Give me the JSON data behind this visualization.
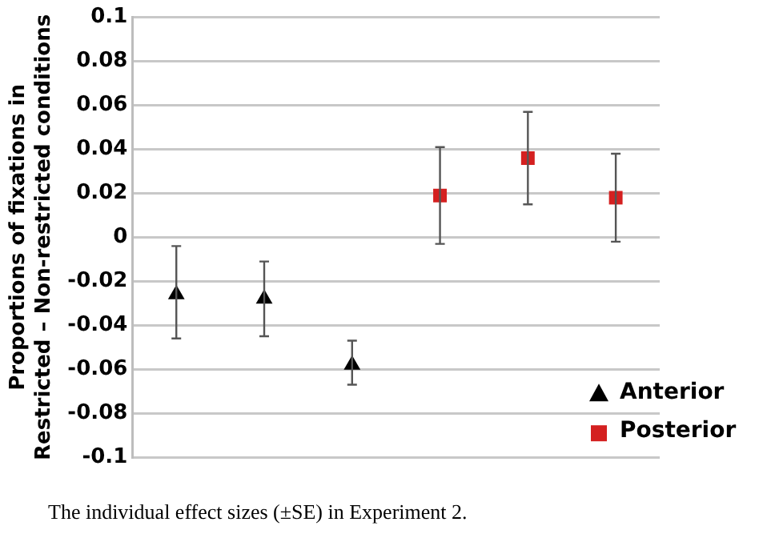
{
  "chart_data": {
    "type": "scatter",
    "ylabel": "Proportions of fixations in\nRestricted – Non-restricted conditions",
    "categories": [
      null,
      null,
      null,
      null,
      null,
      null
    ],
    "series": [
      {
        "name": "Anterior",
        "color": "#000000",
        "marker": "triangle",
        "values": [
          -0.026,
          -0.028,
          -0.058,
          null,
          null,
          null
        ],
        "errors": [
          [
            -0.046,
            -0.004
          ],
          [
            -0.045,
            -0.011
          ],
          [
            -0.067,
            -0.047
          ],
          null,
          null,
          null
        ]
      },
      {
        "name": "Posterior",
        "color": "#d42020",
        "marker": "square",
        "values": [
          null,
          null,
          null,
          0.019,
          0.036,
          0.018
        ],
        "errors": [
          null,
          null,
          null,
          [
            -0.003,
            0.041
          ],
          [
            0.015,
            0.057
          ],
          [
            -0.002,
            0.038
          ]
        ]
      }
    ],
    "ylim": [
      -0.1,
      0.1
    ],
    "yticks": [
      -0.1,
      -0.08,
      -0.06,
      -0.04,
      -0.02,
      0,
      0.02,
      0.04,
      0.06,
      0.08,
      0.1
    ],
    "grid": "y",
    "legend": "bottom right",
    "annotations": [
      "The individual effect sizes (±SE) in Experiment 2."
    ]
  }
}
